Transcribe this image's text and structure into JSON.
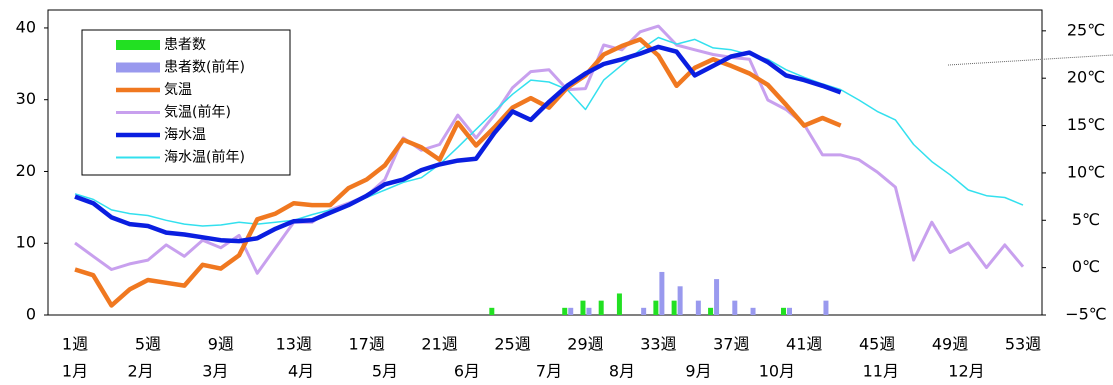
{
  "chart_data": {
    "type": "bar-line",
    "categories": [
      "1週",
      null,
      null,
      null,
      "5週",
      null,
      null,
      null,
      "9週",
      null,
      null,
      null,
      "13週",
      null,
      null,
      null,
      "17週",
      null,
      null,
      null,
      "21週",
      null,
      null,
      null,
      "25週",
      null,
      null,
      null,
      "29週",
      null,
      null,
      null,
      "33週",
      null,
      null,
      null,
      "37週",
      null,
      null,
      null,
      "41週",
      null,
      null,
      null,
      "45週",
      null,
      null,
      null,
      "49週",
      null,
      null,
      null,
      "53週"
    ],
    "months": {
      "labels": [
        "1月",
        "2月",
        "3月",
        "4月",
        "5月",
        "6月",
        "7月",
        "8月",
        "9月",
        "10月",
        "11月",
        "12月"
      ],
      "at_week": [
        1,
        4.6,
        8.7,
        13.4,
        18,
        22.5,
        27,
        31,
        35.2,
        39.5,
        45.2,
        49.9
      ]
    },
    "series": [
      {
        "name": "患者数",
        "kind": "bar",
        "color": "#22e022",
        "values": [
          null,
          null,
          null,
          null,
          null,
          null,
          null,
          null,
          null,
          null,
          null,
          null,
          null,
          null,
          null,
          null,
          null,
          null,
          null,
          null,
          null,
          null,
          null,
          1,
          null,
          null,
          null,
          1,
          2,
          2,
          3,
          null,
          2,
          2,
          null,
          1,
          null,
          null,
          null,
          1,
          null,
          null,
          null,
          null,
          null,
          null,
          null,
          null,
          null,
          null,
          null,
          null,
          null
        ]
      },
      {
        "name": "患者数(前年)",
        "kind": "bar",
        "color": "#9999ee",
        "values": [
          null,
          null,
          null,
          null,
          null,
          null,
          null,
          null,
          null,
          null,
          null,
          null,
          null,
          null,
          null,
          null,
          null,
          null,
          null,
          null,
          null,
          null,
          null,
          null,
          null,
          null,
          null,
          1,
          1,
          null,
          null,
          1,
          6,
          4,
          2,
          5,
          2,
          1,
          null,
          1,
          null,
          2,
          null,
          null,
          null,
          null,
          null,
          null,
          null,
          null,
          null,
          null,
          null
        ]
      },
      {
        "name": "気温",
        "kind": "line",
        "axis": "y2",
        "color": "#f07820",
        "values": [
          -0.2,
          -0.8,
          -4,
          -2.3,
          -1.3,
          -1.6,
          -1.9,
          0.3,
          -0.1,
          1.3,
          5.1,
          5.7,
          6.8,
          6.6,
          6.6,
          8.4,
          9.3,
          10.8,
          13.5,
          12.7,
          11.4,
          15.3,
          12.9,
          14.8,
          16.9,
          17.9,
          16.9,
          19,
          20.3,
          22.5,
          23.4,
          24.1,
          22.4,
          19.2,
          21.1,
          22,
          21.3,
          20.5,
          19.3,
          17.2,
          15,
          15.8,
          15,
          null,
          null,
          null,
          null,
          null,
          null,
          null,
          null,
          null,
          null
        ]
      },
      {
        "name": "気温(前年)",
        "kind": "line",
        "axis": "y2",
        "color": "#c8a0ee",
        "values": [
          2.6,
          1.2,
          -0.2,
          0.4,
          0.8,
          2.4,
          1.2,
          2.9,
          2.1,
          3.4,
          -0.6,
          2.1,
          4.8,
          4.8,
          6.1,
          6.8,
          7.6,
          9.3,
          13.7,
          12.4,
          13,
          16.1,
          13.7,
          16.1,
          19,
          20.7,
          20.9,
          18.8,
          18.9,
          23.5,
          23,
          24.9,
          25.5,
          23.5,
          23,
          22.5,
          22.2,
          22,
          17.7,
          16.7,
          15.1,
          11.9,
          11.9,
          11.4,
          10.1,
          8.5,
          0.8,
          4.8,
          1.6,
          2.6,
          0,
          2.4,
          0.1
        ]
      },
      {
        "name": "海水温",
        "kind": "line",
        "axis": "y2",
        "color": "#0a1ee0",
        "values": [
          7.5,
          6.8,
          5.3,
          4.6,
          4.4,
          3.7,
          3.5,
          3.2,
          2.9,
          2.8,
          3.1,
          4.1,
          4.9,
          5,
          5.8,
          6.6,
          7.6,
          8.8,
          9.3,
          10.3,
          10.9,
          11.3,
          11.5,
          14.2,
          16.5,
          15.6,
          17.5,
          19.2,
          20.5,
          21.5,
          22,
          22.6,
          23.3,
          22.8,
          20.3,
          21.3,
          22.3,
          22.7,
          21.7,
          20.3,
          19.8,
          19.2,
          18.5,
          null,
          null,
          null,
          null,
          null,
          null,
          null,
          null,
          null,
          null
        ]
      },
      {
        "name": "海水温(前年)",
        "kind": "line",
        "axis": "y2",
        "color": "#33e0ee",
        "values": [
          7.8,
          7.2,
          6.1,
          5.7,
          5.5,
          5,
          4.6,
          4.4,
          4.5,
          4.8,
          4.6,
          4.8,
          5,
          5.6,
          6.1,
          6.5,
          7.4,
          8.2,
          9,
          9.5,
          10.9,
          12.7,
          14.6,
          16.5,
          18.3,
          19.8,
          19.6,
          18.8,
          16.7,
          19.8,
          21.4,
          23,
          24.3,
          23.6,
          24.1,
          23.2,
          23,
          22.5,
          22,
          20.9,
          20.1,
          19.4,
          18.8,
          17.7,
          16.5,
          15.6,
          13,
          11.2,
          9.8,
          8.2,
          7.6,
          7.4,
          6.6
        ]
      }
    ],
    "ylim": [
      0,
      42.5
    ],
    "yticks": [
      0,
      10,
      20,
      30,
      40
    ],
    "y2lim": [
      -5,
      27.2
    ],
    "y2ticks": [
      {
        "value": -5,
        "label": "−5℃"
      },
      {
        "value": 0,
        "label": "0℃"
      },
      {
        "value": 5,
        "label": "5℃"
      },
      {
        "value": 10,
        "label": "10℃"
      },
      {
        "value": 15,
        "label": "15℃"
      },
      {
        "value": 20,
        "label": "20℃"
      },
      {
        "value": 25,
        "label": "25℃"
      }
    ],
    "grid": false,
    "legend": "upper left"
  }
}
